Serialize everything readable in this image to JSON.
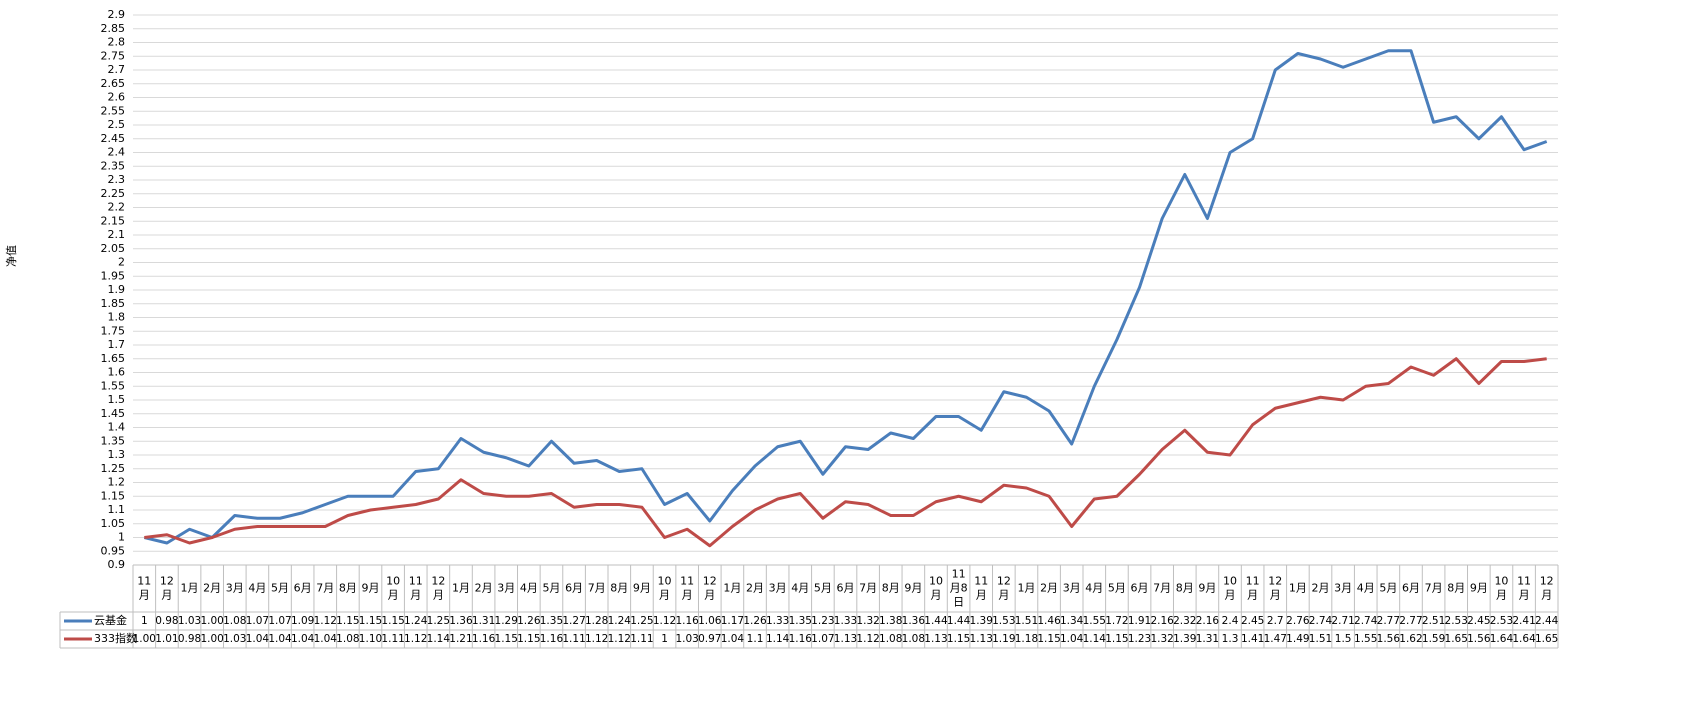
{
  "chart_data": {
    "type": "line",
    "y_label": "净值",
    "categories": [
      "11月",
      "12月",
      "1月",
      "2月",
      "3月",
      "4月",
      "5月",
      "6月",
      "7月",
      "8月",
      "9月",
      "10月",
      "11月",
      "12月",
      "1月",
      "2月",
      "3月",
      "4月",
      "5月",
      "6月",
      "7月",
      "8月",
      "9月",
      "10月",
      "11月",
      "12月",
      "1月",
      "2月",
      "3月",
      "4月",
      "5月",
      "6月",
      "7月",
      "8月",
      "9月",
      "10月",
      "11月8日",
      "11月",
      "12月",
      "1月",
      "2月",
      "3月",
      "4月",
      "5月",
      "6月",
      "7月",
      "8月",
      "9月",
      "10月",
      "11月",
      "12月",
      "1月",
      "2月",
      "3月",
      "4月",
      "5月",
      "6月",
      "7月",
      "8月",
      "9月",
      "10月",
      "11月",
      "12月"
    ],
    "series": [
      {
        "name": "云基金",
        "color": "#4a7ebb",
        "values": [
          1,
          0.98,
          1.03,
          1,
          1.08,
          1.07,
          1.07,
          1.09,
          1.12,
          1.15,
          1.15,
          1.15,
          1.24,
          1.25,
          1.36,
          1.31,
          1.29,
          1.26,
          1.35,
          1.27,
          1.28,
          1.24,
          1.25,
          1.12,
          1.16,
          1.06,
          1.17,
          1.26,
          1.33,
          1.35,
          1.23,
          1.33,
          1.32,
          1.38,
          1.36,
          1.44,
          1.44,
          1.39,
          1.53,
          1.51,
          1.46,
          1.34,
          1.55,
          1.72,
          1.91,
          2.16,
          2.32,
          2.16,
          2.4,
          2.45,
          2.7,
          2.76,
          2.74,
          2.71,
          2.74,
          2.77,
          2.77,
          2.51,
          2.53,
          2.45,
          2.53,
          2.41,
          2.44
        ],
        "value_labels": [
          "1",
          "0.98",
          "1.03",
          "1.00",
          "1.08",
          "1.07",
          "1.07",
          "1.09",
          "1.12",
          "1.15",
          "1.15",
          "1.15",
          "1.24",
          "1.25",
          "1.36",
          "1.31",
          "1.29",
          "1.26",
          "1.35",
          "1.27",
          "1.28",
          "1.24",
          "1.25",
          "1.12",
          "1.16",
          "1.06",
          "1.17",
          "1.26",
          "1.33",
          "1.35",
          "1.23",
          "1.33",
          "1.32",
          "1.38",
          "1.36",
          "1.44",
          "1.44",
          "1.39",
          "1.53",
          "1.51",
          "1.46",
          "1.34",
          "1.55",
          "1.72",
          "1.91",
          "2.16",
          "2.32",
          "2.16",
          "2.4",
          "2.45",
          "2.7",
          "2.76",
          "2.74",
          "2.71",
          "2.74",
          "2.77",
          "2.77",
          "2.51",
          "2.53",
          "2.45",
          "2.53",
          "2.41",
          "2.44"
        ]
      },
      {
        "name": "333指数",
        "color": "#be4b48",
        "values": [
          1,
          1.01,
          0.98,
          1,
          1.03,
          1.04,
          1.04,
          1.04,
          1.04,
          1.08,
          1.1,
          1.11,
          1.12,
          1.14,
          1.21,
          1.16,
          1.15,
          1.15,
          1.16,
          1.11,
          1.12,
          1.12,
          1.11,
          1,
          1.03,
          0.97,
          1.04,
          1.1,
          1.14,
          1.16,
          1.07,
          1.13,
          1.12,
          1.08,
          1.08,
          1.13,
          1.15,
          1.13,
          1.19,
          1.18,
          1.15,
          1.04,
          1.14,
          1.15,
          1.23,
          1.32,
          1.39,
          1.31,
          1.3,
          1.41,
          1.47,
          1.49,
          1.51,
          1.5,
          1.55,
          1.56,
          1.62,
          1.59,
          1.65,
          1.56,
          1.64,
          1.64,
          1.65
        ],
        "value_labels": [
          "1.00",
          "1.01",
          "0.98",
          "1.00",
          "1.03",
          "1.04",
          "1.04",
          "1.04",
          "1.04",
          "1.08",
          "1.10",
          "1.11",
          "1.12",
          "1.14",
          "1.21",
          "1.16",
          "1.15",
          "1.15",
          "1.16",
          "1.11",
          "1.12",
          "1.12",
          "1.11",
          "1",
          "1.03",
          "0.97",
          "1.04",
          "1.1",
          "1.14",
          "1.16",
          "1.07",
          "1.13",
          "1.12",
          "1.08",
          "1.08",
          "1.13",
          "1.15",
          "1.13",
          "1.19",
          "1.18",
          "1.15",
          "1.04",
          "1.14",
          "1.15",
          "1.23",
          "1.32",
          "1.39",
          "1.31",
          "1.3",
          "1.41",
          "1.47",
          "1.49",
          "1.51",
          "1.5",
          "1.55",
          "1.56",
          "1.62",
          "1.59",
          "1.65",
          "1.56",
          "1.64",
          "1.64",
          "1.65"
        ]
      }
    ],
    "ylim": [
      0.9,
      2.9
    ],
    "yticks": [
      0.9,
      0.95,
      1,
      1.05,
      1.1,
      1.15,
      1.2,
      1.25,
      1.3,
      1.35,
      1.4,
      1.45,
      1.5,
      1.55,
      1.6,
      1.65,
      1.7,
      1.75,
      1.8,
      1.85,
      1.9,
      1.95,
      2,
      2.05,
      2.1,
      2.15,
      2.2,
      2.25,
      2.3,
      2.35,
      2.4,
      2.45,
      2.5,
      2.55,
      2.6,
      2.65,
      2.7,
      2.75,
      2.8,
      2.85,
      2.9
    ],
    "grid": true
  }
}
